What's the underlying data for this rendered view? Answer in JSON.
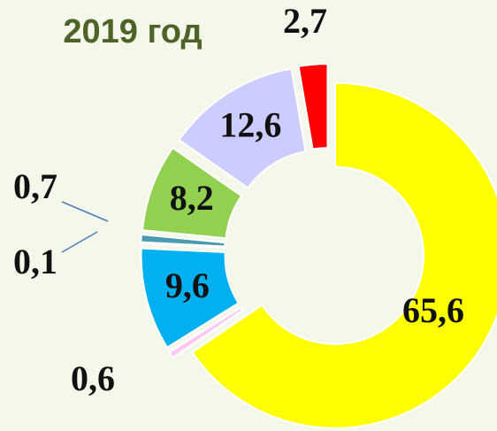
{
  "chart_data": {
    "type": "donut",
    "title": "2019 год",
    "values": [
      65.6,
      0.6,
      9.6,
      0.1,
      0.7,
      8.2,
      12.6,
      2.7
    ],
    "value_labels": [
      "65,6",
      "0,6",
      "9,6",
      "0,1",
      "0,7",
      "8,2",
      "12,6",
      "2,7"
    ],
    "colors": [
      "#ffff00",
      "#ffc8f0",
      "#00b0f0",
      "#000000",
      "#4a9bb0",
      "#92d050",
      "#ccccff",
      "#ff0000"
    ]
  }
}
